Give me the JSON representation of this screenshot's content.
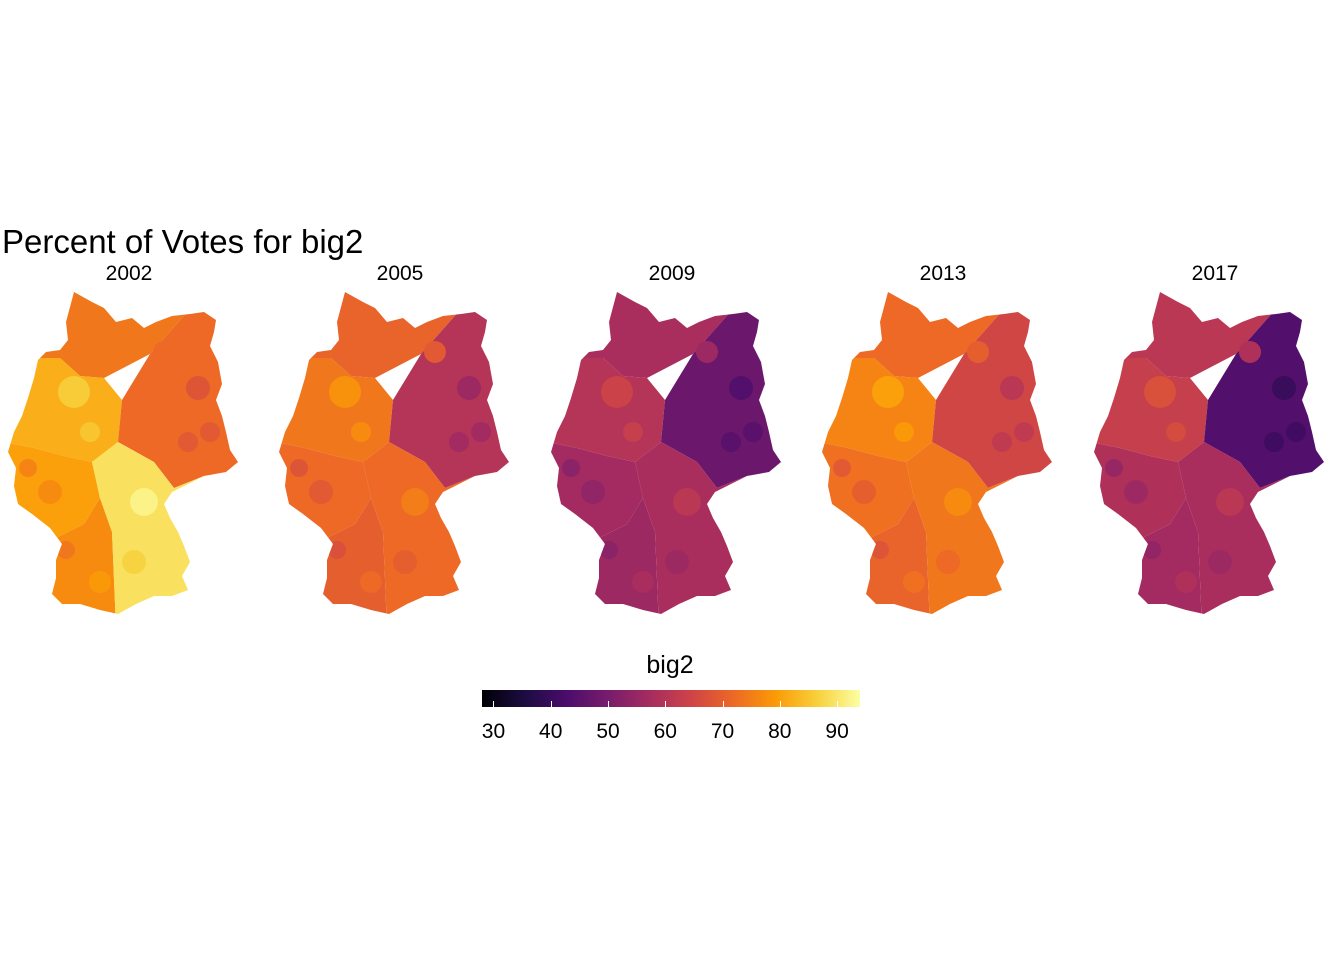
{
  "title": "Percent of Votes for big2",
  "legend": {
    "title": "big2",
    "ticks": [
      "30",
      "40",
      "50",
      "60",
      "70",
      "80",
      "90"
    ],
    "range": [
      28,
      94
    ],
    "palette": [
      "#000004",
      "#1b0c41",
      "#4a0c6b",
      "#781c6d",
      "#a52c60",
      "#cf4446",
      "#ed6925",
      "#fb9b06",
      "#f7d13d",
      "#fcffa4"
    ]
  },
  "panels": [
    {
      "year": "2002",
      "regions": {
        "north": 74,
        "northwest": 82,
        "west": 80,
        "east": 72,
        "southwest": 77,
        "south": 89
      }
    },
    {
      "year": "2005",
      "regions": {
        "north": 71,
        "northwest": 74,
        "west": 72,
        "east": 60,
        "southwest": 70,
        "south": 72
      }
    },
    {
      "year": "2009",
      "regions": {
        "north": 58,
        "northwest": 60,
        "west": 57,
        "east": 48,
        "southwest": 56,
        "south": 58
      }
    },
    {
      "year": "2013",
      "regions": {
        "north": 72,
        "northwest": 76,
        "west": 73,
        "east": 65,
        "southwest": 71,
        "south": 74
      }
    },
    {
      "year": "2017",
      "regions": {
        "north": 61,
        "northwest": 63,
        "west": 59,
        "east": 44,
        "southwest": 57,
        "south": 58
      }
    }
  ]
}
